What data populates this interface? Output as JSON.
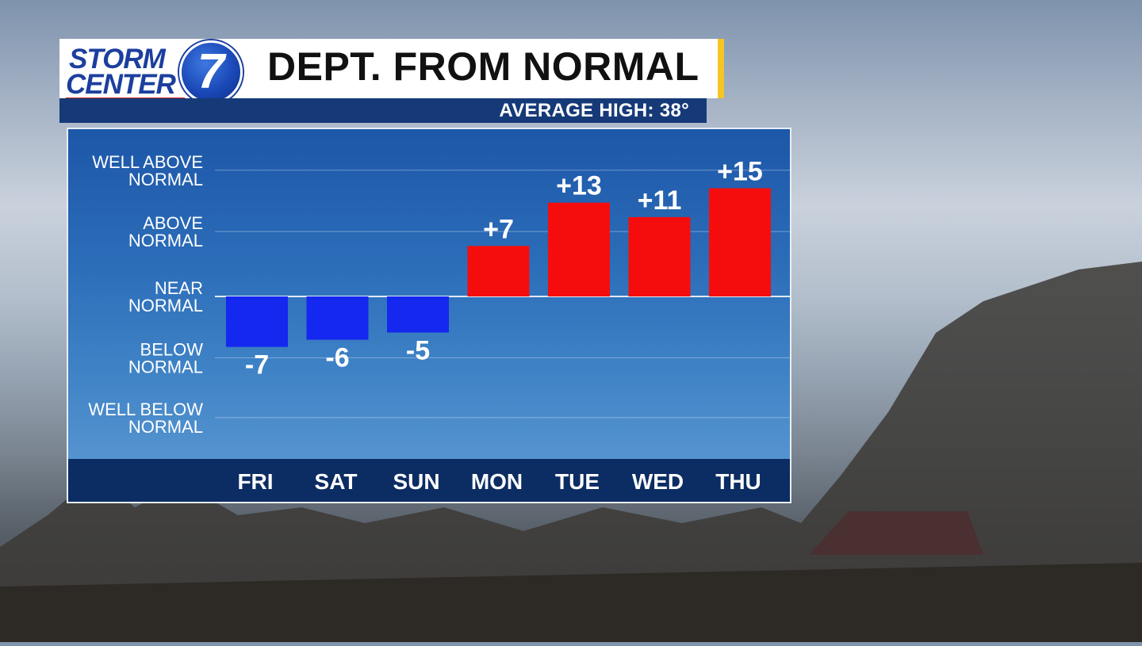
{
  "header": {
    "logo_line1": "STORM",
    "logo_line2": "CENTER",
    "logo_number": "7",
    "title": "DEPT. FROM NORMAL",
    "subtitle": "AVERAGE HIGH: 38°"
  },
  "colors": {
    "above": "#f50d0d",
    "below": "#1428f0",
    "accent": "#f3c623",
    "brand": "#1c3f9e"
  },
  "chart_data": {
    "type": "bar",
    "title": "DEPT. FROM NORMAL",
    "subtitle": "AVERAGE HIGH: 38°",
    "categories": [
      "FRI",
      "SAT",
      "SUN",
      "MON",
      "TUE",
      "WED",
      "THU"
    ],
    "values": [
      -7,
      -6,
      -5,
      7,
      13,
      11,
      15
    ],
    "value_labels": [
      "-7",
      "-6",
      "-5",
      "+7",
      "+13",
      "+11",
      "+15"
    ],
    "y_levels": [
      {
        "line1": "WELL ABOVE",
        "line2": "NORMAL",
        "value": 17.5
      },
      {
        "line1": "ABOVE",
        "line2": "NORMAL",
        "value": 9
      },
      {
        "line1": "NEAR",
        "line2": "NORMAL",
        "value": 0
      },
      {
        "line1": "BELOW",
        "line2": "NORMAL",
        "value": -8.5
      },
      {
        "line1": "WELL BELOW",
        "line2": "NORMAL",
        "value": -16.8
      }
    ],
    "ylim": [
      -22.5,
      22.5
    ],
    "grid": true,
    "legend": "none"
  }
}
